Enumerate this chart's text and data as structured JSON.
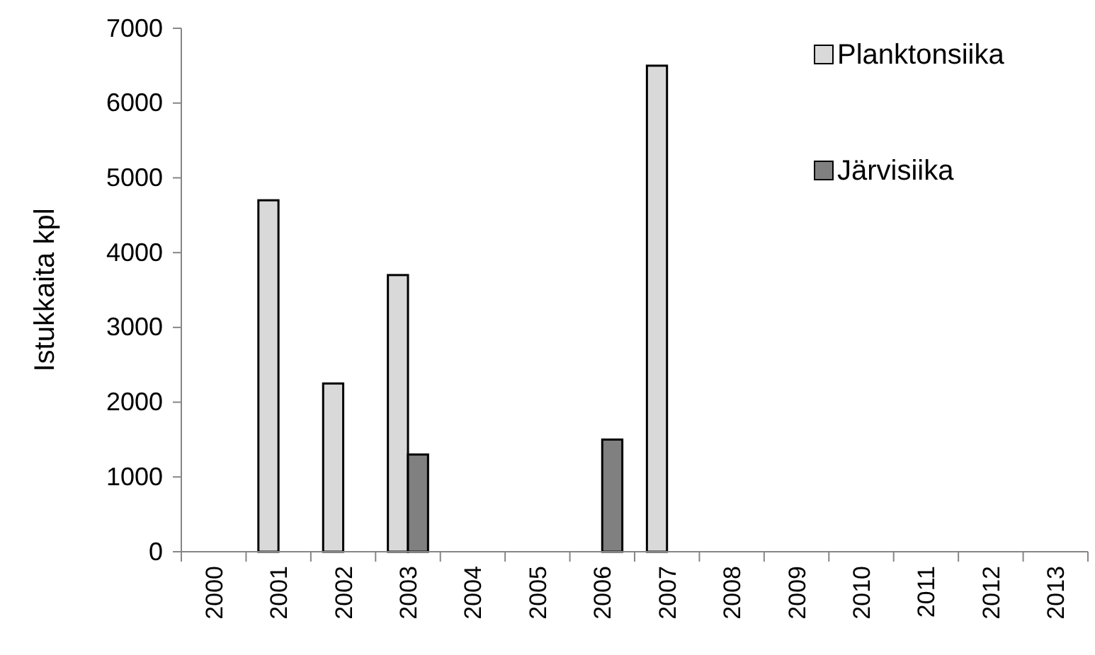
{
  "chart_data": {
    "type": "bar",
    "ylabel": "Istukkaita kpl",
    "categories": [
      "2000",
      "2001",
      "2002",
      "2003",
      "2004",
      "2005",
      "2006",
      "2007",
      "2008",
      "2009",
      "2010",
      "2011",
      "2012",
      "2013"
    ],
    "series": [
      {
        "name": "Planktonsiika",
        "color": "#d9d9d9",
        "values": [
          null,
          4700,
          2250,
          3700,
          null,
          null,
          null,
          6500,
          null,
          null,
          null,
          null,
          null,
          null
        ]
      },
      {
        "name": "Järvisiika",
        "color": "#808080",
        "values": [
          null,
          null,
          null,
          1300,
          null,
          null,
          1500,
          null,
          null,
          null,
          null,
          null,
          null,
          null
        ]
      }
    ],
    "ylim": [
      0,
      7000
    ],
    "yticks": [
      0,
      1000,
      2000,
      3000,
      4000,
      5000,
      6000,
      7000
    ],
    "grid": false,
    "legend": "top right"
  }
}
